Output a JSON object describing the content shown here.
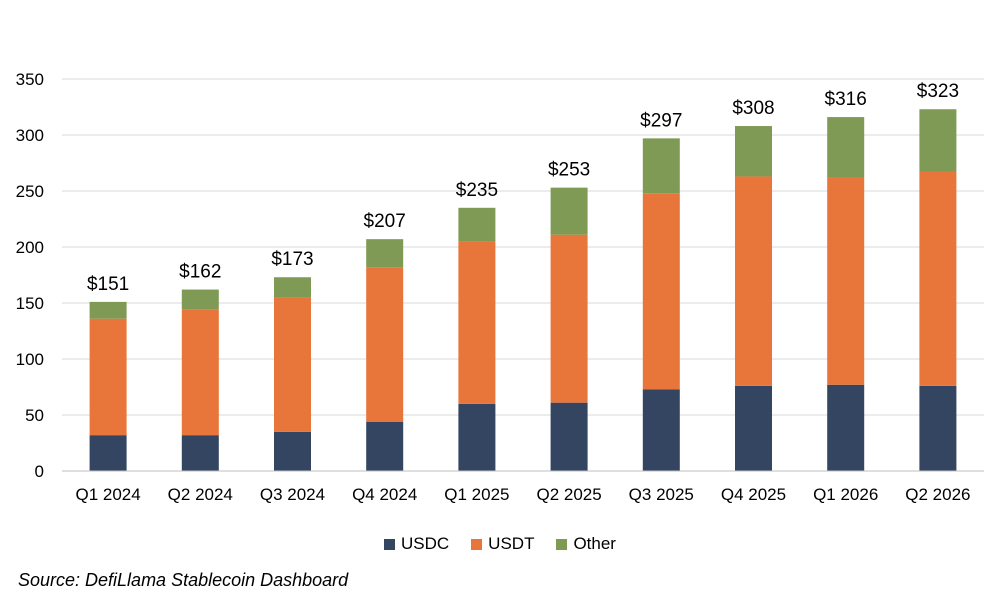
{
  "chart_data": {
    "type": "bar",
    "stacked": true,
    "categories": [
      "Q1 2024",
      "Q2 2024",
      "Q3 2024",
      "Q4 2024",
      "Q1 2025",
      "Q2 2025",
      "Q3 2025",
      "Q4 2025",
      "Q1 2026",
      "Q2 2026"
    ],
    "series": [
      {
        "name": "USDC",
        "color": "#334560",
        "values": [
          32,
          32,
          35,
          44,
          60,
          61,
          73,
          76,
          77,
          76
        ]
      },
      {
        "name": "USDT",
        "color": "#E8753A",
        "values": [
          104,
          112,
          120,
          138,
          145,
          150,
          175,
          187,
          185,
          191
        ]
      },
      {
        "name": "Other",
        "color": "#7F9A55",
        "values": [
          15,
          18,
          18,
          25,
          30,
          42,
          49,
          45,
          54,
          56
        ]
      }
    ],
    "totals": [
      "$151",
      "$162",
      "$173",
      "$207",
      "$235",
      "$253",
      "$297",
      "$308",
      "$316",
      "$323"
    ],
    "ylim": [
      0,
      350
    ],
    "yticks": [
      0,
      50,
      100,
      150,
      200,
      250,
      300,
      350
    ],
    "grid": true,
    "legend_position": "bottom"
  },
  "source": "Source: DefiLlama Stablecoin Dashboard"
}
